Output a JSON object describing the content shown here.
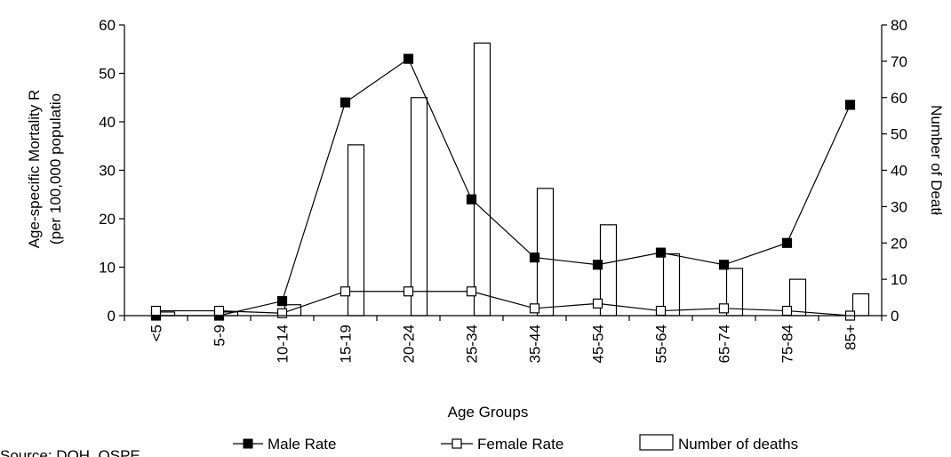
{
  "chart_data": {
    "type": "bar+line",
    "xlabel": "Age Groups",
    "ylabel_left_line1": "Age-specific Mortality R",
    "ylabel_left_line2": "(per 100,000 populatio",
    "ylabel_right": "Number of Deatł",
    "categories": [
      "<5",
      "5-9",
      "10-14",
      "15-19",
      "20-24",
      "25-34",
      "35-44",
      "45-54",
      "55-64",
      "65-74",
      "75-84",
      "85+"
    ],
    "ylim_left": [
      0,
      60
    ],
    "yticks_left": [
      "0",
      "10",
      "20",
      "30",
      "40",
      "50",
      "60"
    ],
    "ylim_right": [
      0,
      80
    ],
    "yticks_right": [
      "0",
      "10",
      "20",
      "30",
      "40",
      "50",
      "60",
      "70",
      "80"
    ],
    "series": [
      {
        "name": "Male Rate",
        "type": "line",
        "axis": "left",
        "marker": "filled-square",
        "values": [
          0,
          0,
          3,
          44,
          53,
          24,
          12,
          10.5,
          13,
          10.5,
          15,
          43.5
        ]
      },
      {
        "name": "Female Rate",
        "type": "line",
        "axis": "left",
        "marker": "hollow-square",
        "values": [
          1,
          1,
          0.5,
          5,
          5,
          5,
          1.5,
          2.5,
          1,
          1.5,
          1,
          0
        ]
      },
      {
        "name": "Number of deaths",
        "type": "bar",
        "axis": "right",
        "values": [
          1,
          1,
          3,
          47,
          60,
          75,
          35,
          25,
          17,
          13,
          10,
          6
        ]
      }
    ],
    "legend_position": "bottom",
    "grid": false
  },
  "source_fragment": "Source: DOH, OSPE"
}
